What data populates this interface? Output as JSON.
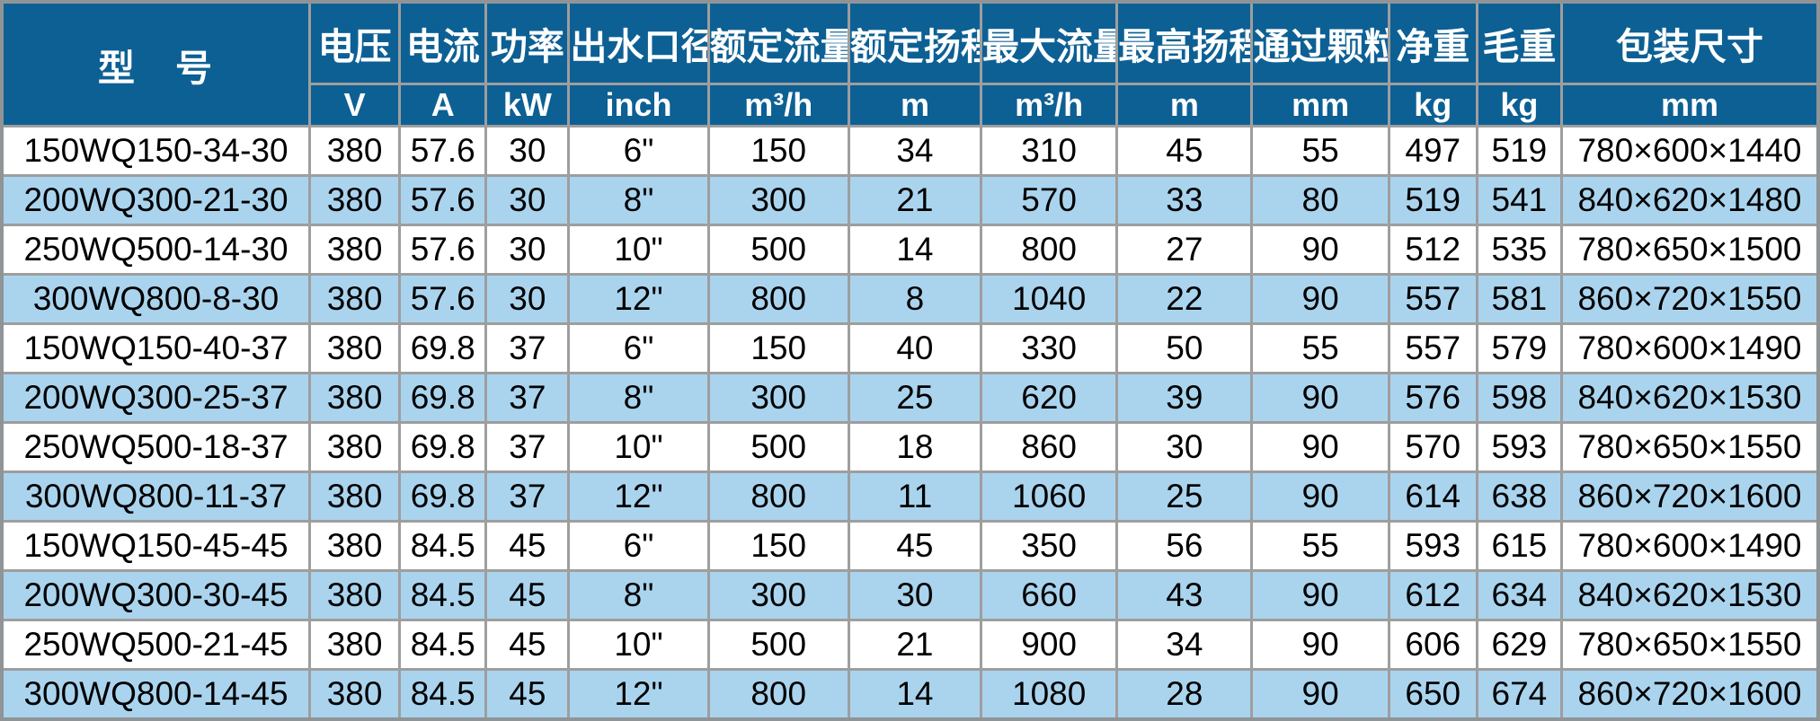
{
  "table": {
    "colors": {
      "header_bg": "#0d6094",
      "header_text": "#ffffff",
      "row_alt_bg": "#aad4ee",
      "row_bg": "#ffffff",
      "grid_border": "#9e9e9e",
      "data_text": "#000000"
    },
    "columns": [
      {
        "id": "model",
        "label": "型　号",
        "unit": null
      },
      {
        "id": "voltage",
        "label": "电压",
        "unit": "V"
      },
      {
        "id": "current",
        "label": "电流",
        "unit": "A"
      },
      {
        "id": "power",
        "label": "功率",
        "unit": "kW"
      },
      {
        "id": "outlet",
        "label": "出水口径",
        "unit": "inch"
      },
      {
        "id": "rated-flow",
        "label": "额定流量",
        "unit": "m³/h"
      },
      {
        "id": "rated-head",
        "label": "额定扬程",
        "unit": "m"
      },
      {
        "id": "max-flow",
        "label": "最大流量",
        "unit": "m³/h"
      },
      {
        "id": "max-head",
        "label": "最高扬程",
        "unit": "m"
      },
      {
        "id": "particle",
        "label": "通过颗粒",
        "unit": "mm"
      },
      {
        "id": "net-weight",
        "label": "净重",
        "unit": "kg"
      },
      {
        "id": "gross-weight",
        "label": "毛重",
        "unit": "kg"
      },
      {
        "id": "package-size",
        "label": "包装尺寸",
        "unit": "mm"
      }
    ],
    "rows": [
      [
        "150WQ150-34-30",
        "380",
        "57.6",
        "30",
        "6\"",
        "150",
        "34",
        "310",
        "45",
        "55",
        "497",
        "519",
        "780×600×1440"
      ],
      [
        "200WQ300-21-30",
        "380",
        "57.6",
        "30",
        "8\"",
        "300",
        "21",
        "570",
        "33",
        "80",
        "519",
        "541",
        "840×620×1480"
      ],
      [
        "250WQ500-14-30",
        "380",
        "57.6",
        "30",
        "10\"",
        "500",
        "14",
        "800",
        "27",
        "90",
        "512",
        "535",
        "780×650×1500"
      ],
      [
        "300WQ800-8-30",
        "380",
        "57.6",
        "30",
        "12\"",
        "800",
        "8",
        "1040",
        "22",
        "90",
        "557",
        "581",
        "860×720×1550"
      ],
      [
        "150WQ150-40-37",
        "380",
        "69.8",
        "37",
        "6\"",
        "150",
        "40",
        "330",
        "50",
        "55",
        "557",
        "579",
        "780×600×1490"
      ],
      [
        "200WQ300-25-37",
        "380",
        "69.8",
        "37",
        "8\"",
        "300",
        "25",
        "620",
        "39",
        "90",
        "576",
        "598",
        "840×620×1530"
      ],
      [
        "250WQ500-18-37",
        "380",
        "69.8",
        "37",
        "10\"",
        "500",
        "18",
        "860",
        "30",
        "90",
        "570",
        "593",
        "780×650×1550"
      ],
      [
        "300WQ800-11-37",
        "380",
        "69.8",
        "37",
        "12\"",
        "800",
        "11",
        "1060",
        "25",
        "90",
        "614",
        "638",
        "860×720×1600"
      ],
      [
        "150WQ150-45-45",
        "380",
        "84.5",
        "45",
        "6\"",
        "150",
        "45",
        "350",
        "56",
        "55",
        "593",
        "615",
        "780×600×1490"
      ],
      [
        "200WQ300-30-45",
        "380",
        "84.5",
        "45",
        "8\"",
        "300",
        "30",
        "660",
        "43",
        "90",
        "612",
        "634",
        "840×620×1530"
      ],
      [
        "250WQ500-21-45",
        "380",
        "84.5",
        "45",
        "10\"",
        "500",
        "21",
        "900",
        "34",
        "90",
        "606",
        "629",
        "780×650×1550"
      ],
      [
        "300WQ800-14-45",
        "380",
        "84.5",
        "45",
        "12\"",
        "800",
        "14",
        "1080",
        "28",
        "90",
        "650",
        "674",
        "860×720×1600"
      ]
    ]
  }
}
